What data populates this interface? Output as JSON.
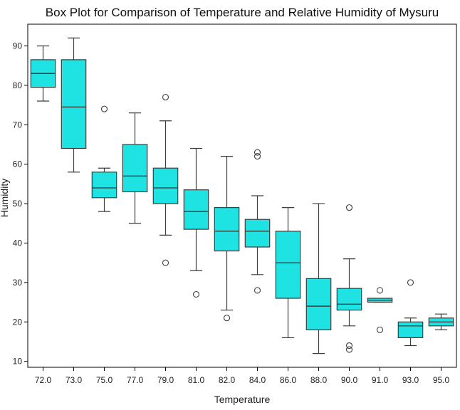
{
  "chart_data": {
    "type": "box",
    "title": "Box Plot for Comparison of Temperature and Relative Humidity of Mysuru",
    "xlabel": "Temperature",
    "ylabel": "Humidity",
    "ylim": [
      8.5,
      95.5
    ],
    "yticks": [
      10,
      20,
      30,
      40,
      50,
      60,
      70,
      80,
      90
    ],
    "box_color": "#1fe3e3",
    "edge_color": "#3d3d3d",
    "categories": [
      "72.0",
      "73.0",
      "75.0",
      "77.0",
      "79.0",
      "81.0",
      "82.0",
      "84.0",
      "86.0",
      "88.0",
      "90.0",
      "91.0",
      "93.0",
      "95.0"
    ],
    "boxes": [
      {
        "category": "72.0",
        "whisker_low": 76,
        "q1": 79.5,
        "median": 83,
        "q3": 86.5,
        "whisker_high": 90,
        "outliers": []
      },
      {
        "category": "73.0",
        "whisker_low": 58,
        "q1": 64,
        "median": 74.5,
        "q3": 86.5,
        "whisker_high": 92,
        "outliers": []
      },
      {
        "category": "75.0",
        "whisker_low": 48,
        "q1": 51.5,
        "median": 54,
        "q3": 58,
        "whisker_high": 59,
        "outliers": [
          74
        ]
      },
      {
        "category": "77.0",
        "whisker_low": 45,
        "q1": 53,
        "median": 57,
        "q3": 65,
        "whisker_high": 73,
        "outliers": []
      },
      {
        "category": "79.0",
        "whisker_low": 42,
        "q1": 50,
        "median": 54,
        "q3": 59,
        "whisker_high": 71,
        "outliers": [
          77,
          35
        ]
      },
      {
        "category": "81.0",
        "whisker_low": 33,
        "q1": 43.5,
        "median": 48,
        "q3": 53.5,
        "whisker_high": 64,
        "outliers": [
          27
        ]
      },
      {
        "category": "82.0",
        "whisker_low": 23,
        "q1": 38,
        "median": 43,
        "q3": 49,
        "whisker_high": 62,
        "outliers": [
          21
        ]
      },
      {
        "category": "84.0",
        "whisker_low": 32,
        "q1": 39,
        "median": 43,
        "q3": 46,
        "whisker_high": 52,
        "outliers": [
          63,
          62,
          28
        ]
      },
      {
        "category": "86.0",
        "whisker_low": 16,
        "q1": 26,
        "median": 35,
        "q3": 43,
        "whisker_high": 49,
        "outliers": []
      },
      {
        "category": "88.0",
        "whisker_low": 12,
        "q1": 18,
        "median": 24,
        "q3": 31,
        "whisker_high": 50,
        "outliers": []
      },
      {
        "category": "90.0",
        "whisker_low": 19,
        "q1": 23,
        "median": 24.5,
        "q3": 28.5,
        "whisker_high": 36,
        "outliers": [
          49,
          14,
          13
        ]
      },
      {
        "category": "91.0",
        "whisker_low": 25,
        "q1": 25,
        "median": 25.5,
        "q3": 26,
        "whisker_high": 26,
        "outliers": [
          28,
          18
        ]
      },
      {
        "category": "93.0",
        "whisker_low": 14,
        "q1": 16,
        "median": 19,
        "q3": 20,
        "whisker_high": 21,
        "outliers": [
          30
        ]
      },
      {
        "category": "95.0",
        "whisker_low": 18,
        "q1": 19,
        "median": 20,
        "q3": 21,
        "whisker_high": 22,
        "outliers": []
      }
    ]
  }
}
